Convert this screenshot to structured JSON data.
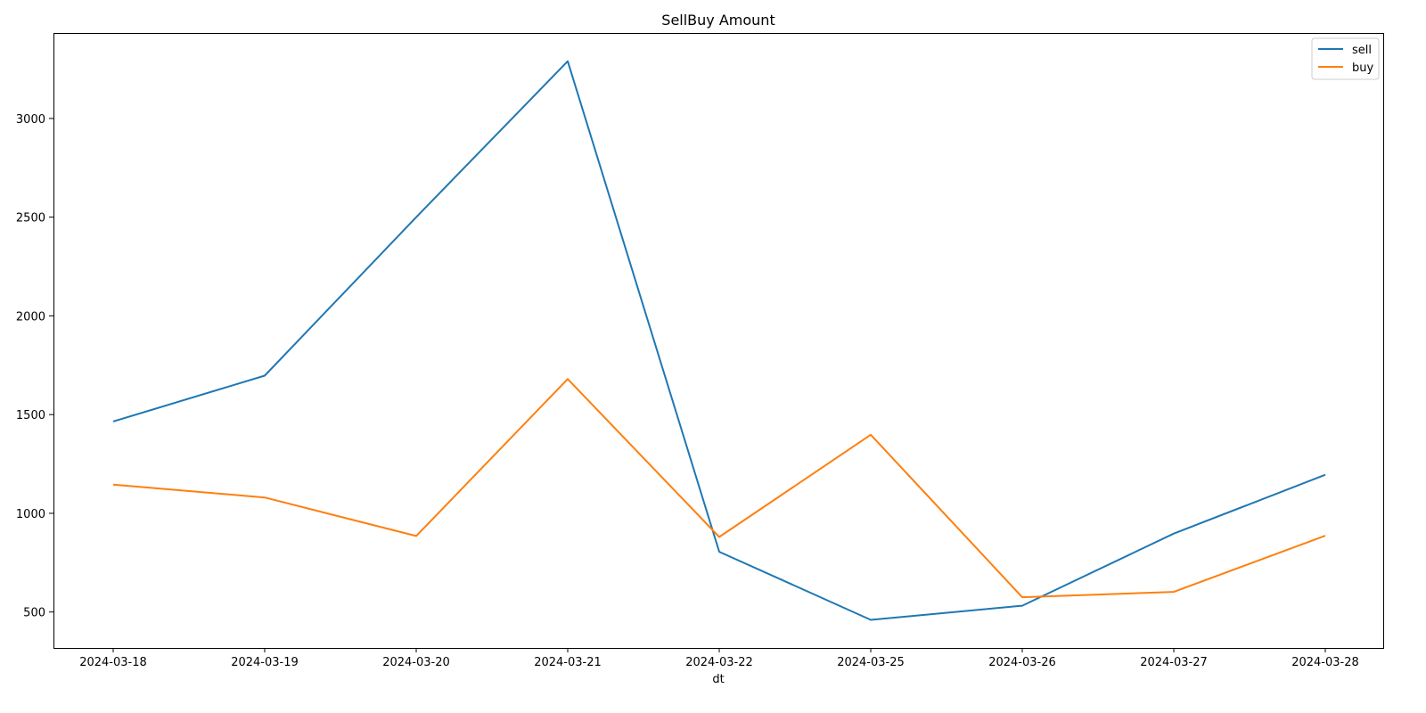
{
  "chart_data": {
    "type": "line",
    "title": "SellBuy Amount",
    "xlabel": "dt",
    "ylabel": "",
    "categories": [
      "2024-03-18",
      "2024-03-19",
      "2024-03-20",
      "2024-03-21",
      "2024-03-22",
      "2024-03-25",
      "2024-03-26",
      "2024-03-27",
      "2024-03-28"
    ],
    "yticks": [
      500,
      1000,
      1500,
      2000,
      2500,
      3000
    ],
    "ylim": [
      318,
      3433
    ],
    "grid": false,
    "legend_position": "top-right",
    "series": [
      {
        "name": "sell",
        "color": "#1f77b4",
        "values": [
          1465,
          1697,
          2500,
          3290,
          805,
          460,
          532,
          897,
          1195
        ]
      },
      {
        "name": "buy",
        "color": "#ff7f0e",
        "values": [
          1145,
          1080,
          885,
          1680,
          880,
          1398,
          575,
          602,
          887
        ]
      }
    ]
  }
}
